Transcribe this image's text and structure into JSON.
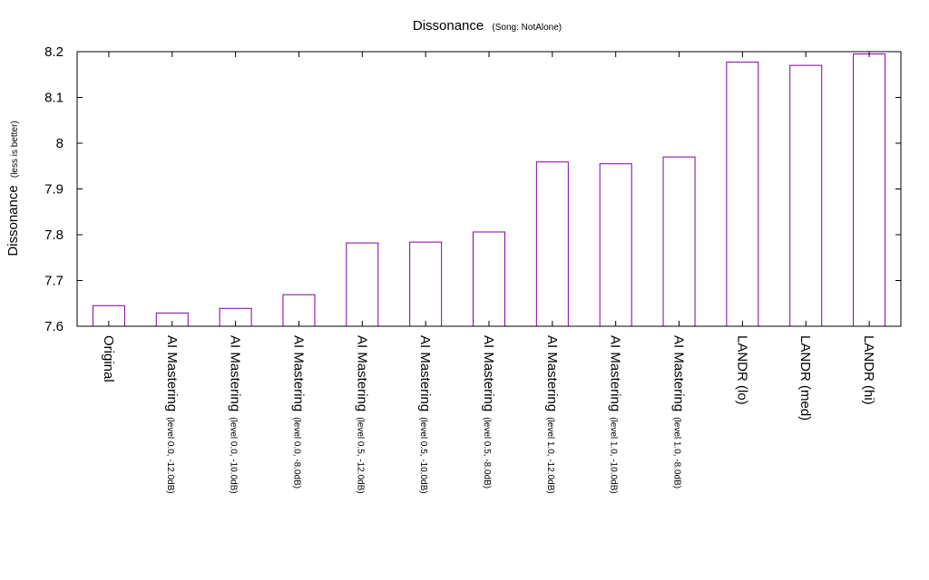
{
  "chart_data": {
    "type": "bar",
    "title": "Dissonance",
    "subtitle": "(Song: NotAlone)",
    "ylabel": "Dissonance",
    "ylabel_note": "(less is better)",
    "xlabel": "",
    "ylim": [
      7.6,
      8.2
    ],
    "yticks": [
      "7.6",
      "7.7",
      "7.8",
      "7.9",
      "8",
      "8.1",
      "8.2"
    ],
    "grid": false,
    "legend": "none",
    "colors": {
      "bar_stroke": "#8000a0",
      "axis": "#000000"
    },
    "categories": [
      {
        "label": "Original",
        "note": ""
      },
      {
        "label": "AI Mastering",
        "note": "(level 0.0, -12.0dB)"
      },
      {
        "label": "AI Mastering",
        "note": "(level 0.0, -10.0dB)"
      },
      {
        "label": "AI Mastering",
        "note": "(level 0.0, -8.0dB)"
      },
      {
        "label": "AI Mastering",
        "note": "(level 0.5, -12.0dB)"
      },
      {
        "label": "AI Mastering",
        "note": "(level 0.5, -10.0dB)"
      },
      {
        "label": "AI Mastering",
        "note": "(level 0.5, -8.0dB)"
      },
      {
        "label": "AI Mastering",
        "note": "(level 1.0, -12.0dB)"
      },
      {
        "label": "AI Mastering",
        "note": "(level 1.0, -10.0dB)"
      },
      {
        "label": "AI Mastering",
        "note": "(level 1.0, -8.0dB)"
      },
      {
        "label": "LANDR (lo)",
        "note": ""
      },
      {
        "label": "LANDR (med)",
        "note": ""
      },
      {
        "label": "LANDR (hi)",
        "note": ""
      }
    ],
    "values": [
      7.645,
      7.629,
      7.639,
      7.669,
      7.782,
      7.784,
      7.806,
      7.959,
      7.955,
      7.97,
      8.177,
      8.17,
      8.195
    ]
  }
}
